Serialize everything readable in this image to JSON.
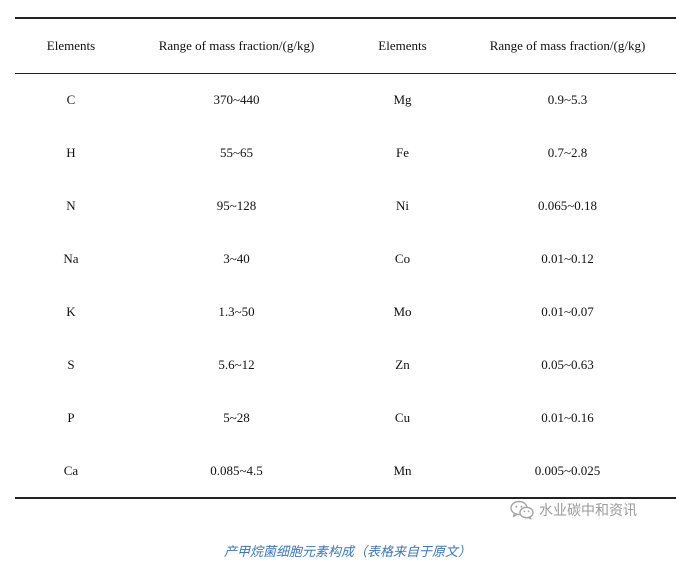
{
  "table": {
    "headers": [
      "Elements",
      "Range of mass fraction/(g/kg)",
      "Elements",
      "Range of mass fraction/(g/kg)"
    ],
    "rows": [
      [
        "C",
        "370~440",
        "Mg",
        "0.9~5.3"
      ],
      [
        "H",
        "55~65",
        "Fe",
        "0.7~2.8"
      ],
      [
        "N",
        "95~128",
        "Ni",
        "0.065~0.18"
      ],
      [
        "Na",
        "3~40",
        "Co",
        "0.01~0.12"
      ],
      [
        "K",
        "1.3~50",
        "Mo",
        "0.01~0.07"
      ],
      [
        "S",
        "5.6~12",
        "Zn",
        "0.05~0.63"
      ],
      [
        "P",
        "5~28",
        "Cu",
        "0.01~0.16"
      ],
      [
        "Ca",
        "0.085~4.5",
        "Mn",
        "0.005~0.025"
      ]
    ]
  },
  "watermark": {
    "text": "水业碳中和资讯",
    "icon": "wechat-icon",
    "color": "#9a9a9a"
  },
  "caption": {
    "text": "产甲烷菌细胞元素构成（表格来自于原文）",
    "color": "#3a76c4"
  }
}
